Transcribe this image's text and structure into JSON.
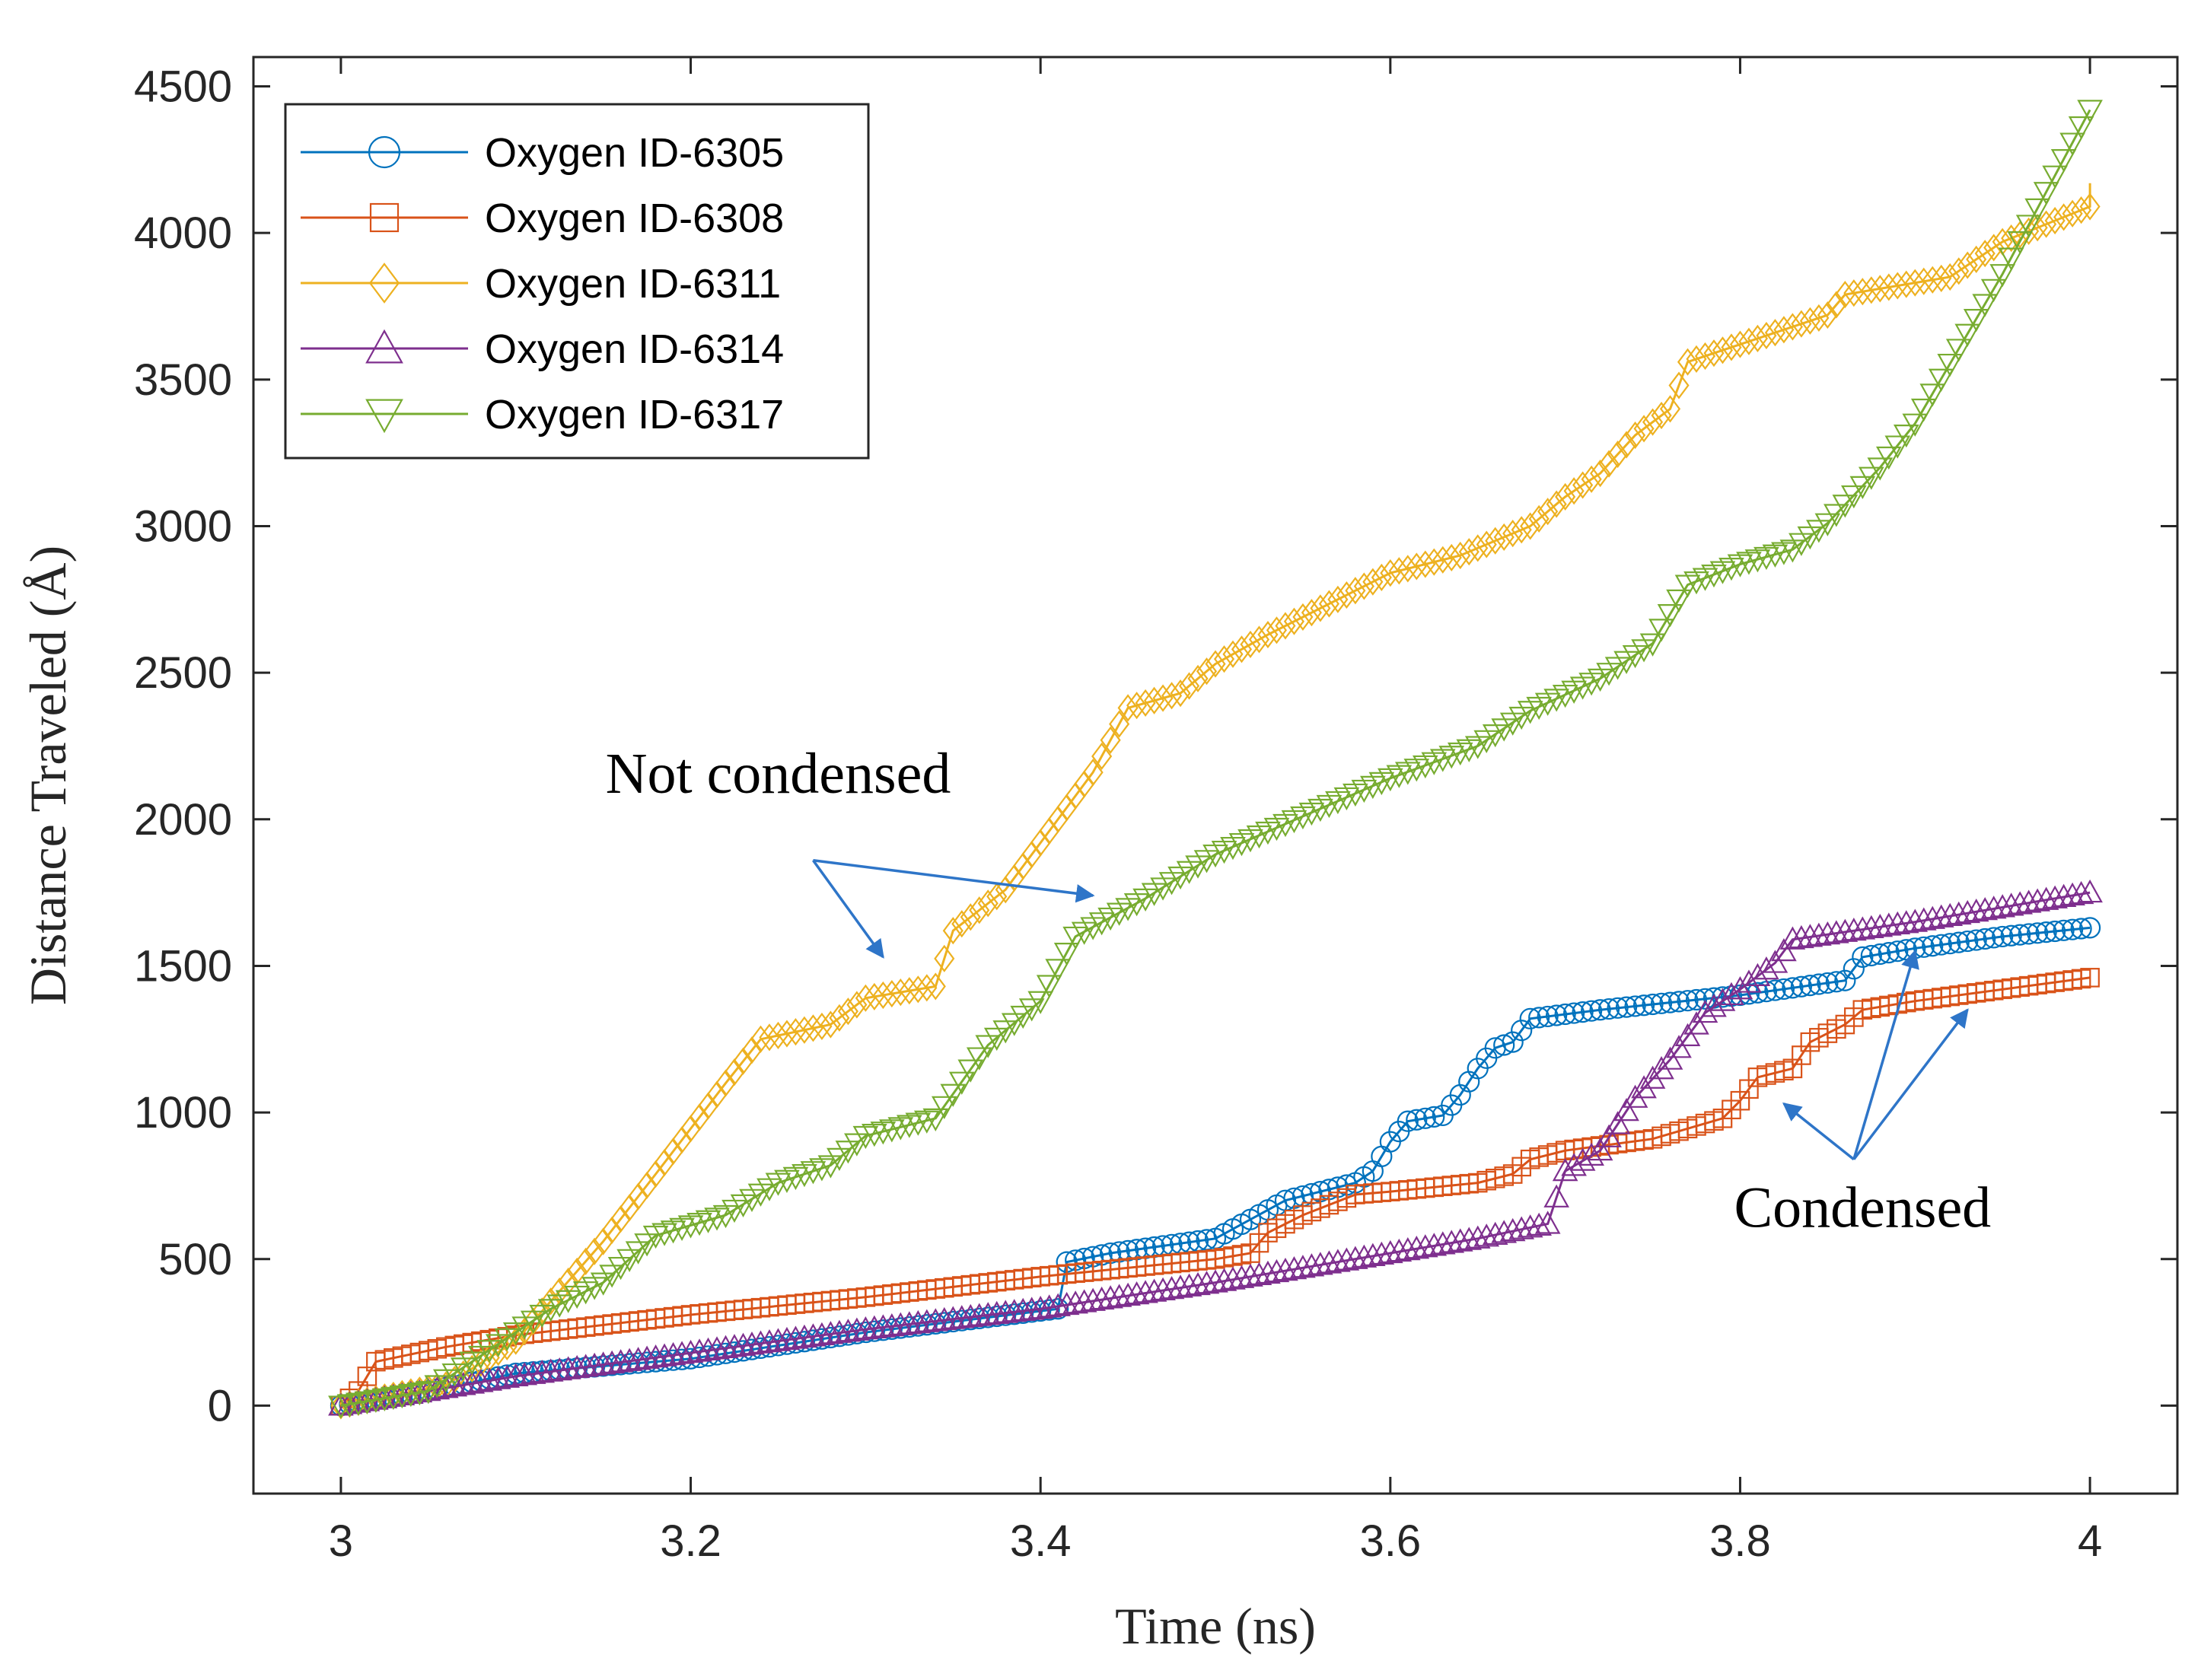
{
  "chart_data": {
    "type": "line",
    "title": "",
    "xlabel": "Time (ns)",
    "ylabel": "Distance Traveled (Å)",
    "xlim": [
      2.95,
      4.05
    ],
    "ylim": [
      -300,
      4600
    ],
    "xticks": [
      3,
      3.2,
      3.4,
      3.6,
      3.8,
      4
    ],
    "xtick_labels": [
      "3",
      "3.2",
      "3.4",
      "3.6",
      "3.8",
      "4"
    ],
    "yticks": [
      0,
      500,
      1000,
      1500,
      2000,
      2500,
      3000,
      3500,
      4000,
      4500
    ],
    "ytick_labels": [
      "0",
      "500",
      "1000",
      "1500",
      "2000",
      "2500",
      "3000",
      "3500",
      "4000",
      "4500"
    ],
    "grid": false,
    "legend_position": "top-left",
    "series": [
      {
        "name": "Oxygen ID-6305",
        "marker": "circle",
        "color": "#0072BD",
        "points": [
          [
            3.0,
            0
          ],
          [
            3.05,
            50
          ],
          [
            3.1,
            110
          ],
          [
            3.2,
            160
          ],
          [
            3.3,
            250
          ],
          [
            3.41,
            330
          ],
          [
            3.415,
            490
          ],
          [
            3.44,
            520
          ],
          [
            3.5,
            570
          ],
          [
            3.54,
            700
          ],
          [
            3.58,
            760
          ],
          [
            3.59,
            800
          ],
          [
            3.6,
            900
          ],
          [
            3.61,
            970
          ],
          [
            3.63,
            990
          ],
          [
            3.64,
            1060
          ],
          [
            3.65,
            1150
          ],
          [
            3.66,
            1220
          ],
          [
            3.67,
            1240
          ],
          [
            3.68,
            1320
          ],
          [
            3.72,
            1350
          ],
          [
            3.8,
            1400
          ],
          [
            3.86,
            1450
          ],
          [
            3.87,
            1530
          ],
          [
            3.9,
            1560
          ],
          [
            3.95,
            1600
          ],
          [
            4.0,
            1630
          ]
        ]
      },
      {
        "name": "Oxygen ID-6308",
        "marker": "square",
        "color": "#D95319",
        "points": [
          [
            3.0,
            0
          ],
          [
            3.01,
            50
          ],
          [
            3.02,
            150
          ],
          [
            3.06,
            200
          ],
          [
            3.1,
            240
          ],
          [
            3.2,
            310
          ],
          [
            3.3,
            370
          ],
          [
            3.4,
            440
          ],
          [
            3.5,
            500
          ],
          [
            3.52,
            520
          ],
          [
            3.53,
            590
          ],
          [
            3.55,
            650
          ],
          [
            3.58,
            720
          ],
          [
            3.6,
            730
          ],
          [
            3.65,
            760
          ],
          [
            3.67,
            790
          ],
          [
            3.68,
            840
          ],
          [
            3.7,
            870
          ],
          [
            3.75,
            910
          ],
          [
            3.79,
            980
          ],
          [
            3.8,
            1040
          ],
          [
            3.81,
            1120
          ],
          [
            3.83,
            1150
          ],
          [
            3.84,
            1240
          ],
          [
            3.86,
            1300
          ],
          [
            3.87,
            1350
          ],
          [
            3.9,
            1380
          ],
          [
            4.0,
            1460
          ]
        ]
      },
      {
        "name": "Oxygen ID-6311",
        "marker": "diamond",
        "color": "#EDB120",
        "points": [
          [
            3.0,
            0
          ],
          [
            3.06,
            70
          ],
          [
            3.1,
            220
          ],
          [
            3.15,
            560
          ],
          [
            3.18,
            790
          ],
          [
            3.22,
            1100
          ],
          [
            3.24,
            1250
          ],
          [
            3.28,
            1300
          ],
          [
            3.3,
            1390
          ],
          [
            3.34,
            1430
          ],
          [
            3.35,
            1620
          ],
          [
            3.38,
            1760
          ],
          [
            3.4,
            1920
          ],
          [
            3.43,
            2160
          ],
          [
            3.45,
            2380
          ],
          [
            3.48,
            2430
          ],
          [
            3.5,
            2530
          ],
          [
            3.53,
            2630
          ],
          [
            3.56,
            2720
          ],
          [
            3.6,
            2840
          ],
          [
            3.64,
            2900
          ],
          [
            3.68,
            3000
          ],
          [
            3.7,
            3100
          ],
          [
            3.72,
            3180
          ],
          [
            3.74,
            3310
          ],
          [
            3.76,
            3400
          ],
          [
            3.77,
            3560
          ],
          [
            3.8,
            3620
          ],
          [
            3.85,
            3720
          ],
          [
            3.86,
            3790
          ],
          [
            3.92,
            3850
          ],
          [
            3.95,
            3970
          ],
          [
            4.0,
            4090
          ],
          [
            4.0,
            4170
          ]
        ]
      },
      {
        "name": "Oxygen ID-6314",
        "marker": "triangle-up",
        "color": "#7E2F8E",
        "points": [
          [
            3.0,
            0
          ],
          [
            3.05,
            50
          ],
          [
            3.1,
            100
          ],
          [
            3.2,
            180
          ],
          [
            3.3,
            260
          ],
          [
            3.4,
            330
          ],
          [
            3.5,
            420
          ],
          [
            3.6,
            520
          ],
          [
            3.65,
            570
          ],
          [
            3.69,
            620
          ],
          [
            3.7,
            800
          ],
          [
            3.72,
            870
          ],
          [
            3.74,
            1050
          ],
          [
            3.76,
            1180
          ],
          [
            3.78,
            1340
          ],
          [
            3.8,
            1420
          ],
          [
            3.82,
            1510
          ],
          [
            3.83,
            1590
          ],
          [
            3.9,
            1650
          ],
          [
            4.0,
            1750
          ]
        ]
      },
      {
        "name": "Oxygen ID-6317",
        "marker": "triangle-down",
        "color": "#77AC30",
        "points": [
          [
            3.0,
            0
          ],
          [
            3.05,
            50
          ],
          [
            3.1,
            250
          ],
          [
            3.12,
            330
          ],
          [
            3.15,
            420
          ],
          [
            3.18,
            580
          ],
          [
            3.22,
            650
          ],
          [
            3.25,
            760
          ],
          [
            3.28,
            820
          ],
          [
            3.3,
            920
          ],
          [
            3.34,
            980
          ],
          [
            3.37,
            1230
          ],
          [
            3.4,
            1380
          ],
          [
            3.42,
            1600
          ],
          [
            3.46,
            1730
          ],
          [
            3.5,
            1880
          ],
          [
            3.55,
            2010
          ],
          [
            3.6,
            2140
          ],
          [
            3.65,
            2250
          ],
          [
            3.68,
            2370
          ],
          [
            3.72,
            2480
          ],
          [
            3.75,
            2600
          ],
          [
            3.77,
            2800
          ],
          [
            3.8,
            2870
          ],
          [
            3.83,
            2920
          ],
          [
            3.85,
            3010
          ],
          [
            3.88,
            3200
          ],
          [
            3.9,
            3350
          ],
          [
            3.95,
            3860
          ],
          [
            4.0,
            4420
          ]
        ]
      }
    ],
    "annotations": [
      {
        "text": "Not condensed",
        "x": 3.25,
        "y": 2090,
        "arrow_tail": [
          3.27,
          1860
        ],
        "arrow_heads": [
          [
            3.31,
            1530
          ],
          [
            3.43,
            1740
          ]
        ]
      },
      {
        "text": "Condensed",
        "x": 3.87,
        "y": 610,
        "arrow_tail": [
          3.865,
          840
        ],
        "arrow_heads": [
          [
            3.825,
            1030
          ],
          [
            3.9,
            1550
          ],
          [
            3.93,
            1350
          ]
        ]
      }
    ]
  }
}
